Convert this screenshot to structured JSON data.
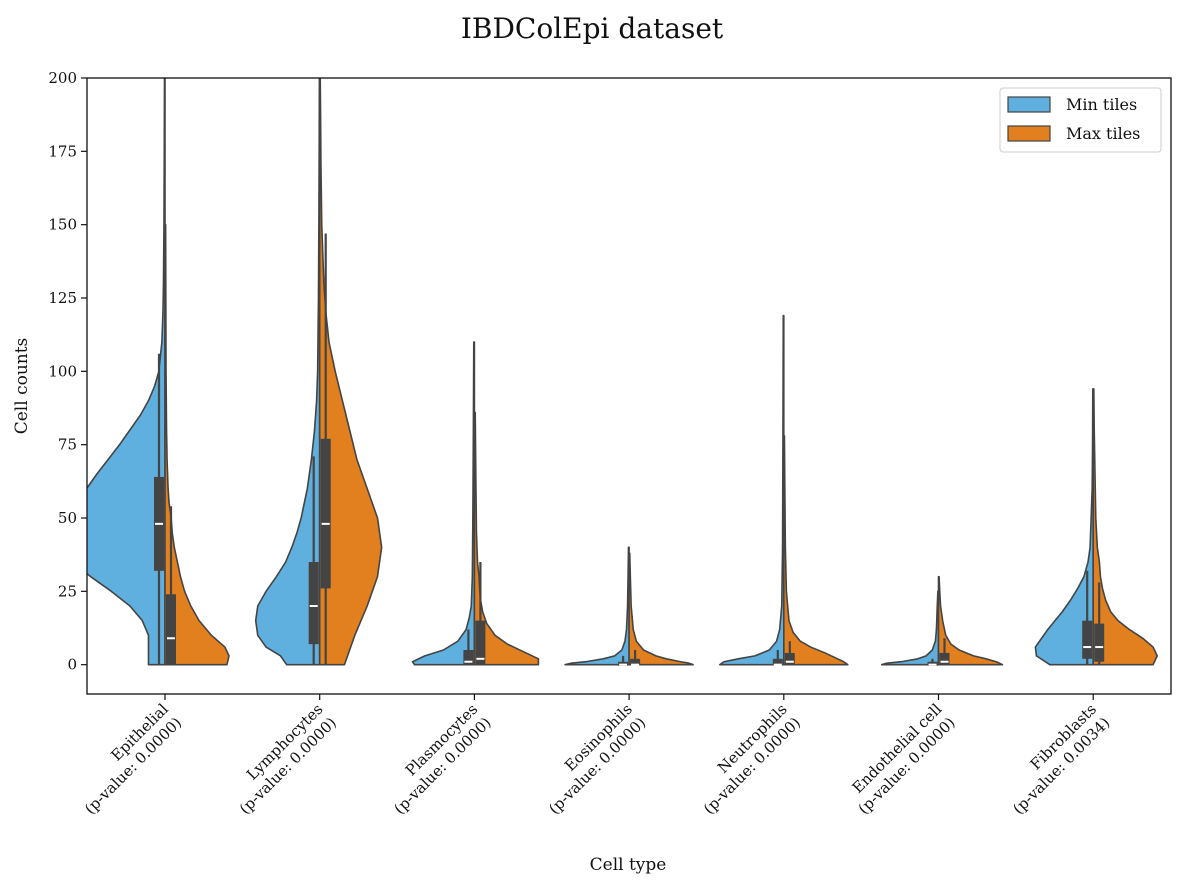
{
  "chart_data": {
    "type": "violin",
    "title": "IBDColEpi dataset",
    "xlabel": "Cell type",
    "ylabel": "Cell counts",
    "ylim": [
      -10,
      200
    ],
    "yticks": [
      0,
      25,
      50,
      75,
      100,
      125,
      150,
      175,
      200
    ],
    "legend": {
      "placement": "top-right"
    },
    "series": [
      {
        "name": "Min tiles",
        "color": "#5fafdf",
        "side": "left"
      },
      {
        "name": "Max tiles",
        "color": "#e2801f",
        "side": "right"
      }
    ],
    "categories": [
      {
        "name": "Epithelial",
        "pvalue": "(p-value: 0.0000)",
        "min": {
          "density": [
            [
              0,
              16
            ],
            [
              5,
              16
            ],
            [
              10,
              16
            ],
            [
              15,
              22
            ],
            [
              20,
              34
            ],
            [
              25,
              52
            ],
            [
              30,
              72
            ],
            [
              35,
              90
            ],
            [
              40,
              98
            ],
            [
              45,
              96
            ],
            [
              50,
              90
            ],
            [
              55,
              84
            ],
            [
              60,
              76
            ],
            [
              65,
              66
            ],
            [
              70,
              55
            ],
            [
              75,
              44
            ],
            [
              80,
              34
            ],
            [
              85,
              24
            ],
            [
              90,
              16
            ],
            [
              95,
              10
            ],
            [
              100,
              6
            ],
            [
              110,
              3
            ],
            [
              120,
              2
            ],
            [
              130,
              1.5
            ],
            [
              150,
              1
            ],
            [
              175,
              0.7
            ],
            [
              200,
              0.5
            ]
          ],
          "q1": 32,
          "median": 48,
          "q3": 64,
          "wlow": 0,
          "whigh": 106
        },
        "max": {
          "density": [
            [
              0,
              60
            ],
            [
              3,
              62
            ],
            [
              6,
              58
            ],
            [
              10,
              45
            ],
            [
              15,
              33
            ],
            [
              20,
              25
            ],
            [
              25,
              19
            ],
            [
              30,
              15
            ],
            [
              35,
              12
            ],
            [
              40,
              9
            ],
            [
              45,
              7
            ],
            [
              50,
              6
            ],
            [
              55,
              4
            ],
            [
              60,
              3
            ],
            [
              70,
              2
            ],
            [
              80,
              1.5
            ],
            [
              100,
              1
            ],
            [
              125,
              0.8
            ],
            [
              150,
              0.6
            ]
          ],
          "q1": 0,
          "median": 9,
          "q3": 24,
          "wlow": 0,
          "whigh": 54
        }
      },
      {
        "name": "Lymphocytes",
        "pvalue": "(p-value: 0.0000)",
        "min": {
          "density": [
            [
              0,
              32
            ],
            [
              3,
              38
            ],
            [
              6,
              52
            ],
            [
              10,
              60
            ],
            [
              15,
              62
            ],
            [
              20,
              60
            ],
            [
              25,
              52
            ],
            [
              30,
              42
            ],
            [
              35,
              33
            ],
            [
              40,
              27
            ],
            [
              45,
              22
            ],
            [
              50,
              18
            ],
            [
              55,
              15
            ],
            [
              60,
              12
            ],
            [
              70,
              8
            ],
            [
              80,
              5
            ],
            [
              90,
              3
            ],
            [
              100,
              2
            ],
            [
              125,
              1.2
            ],
            [
              150,
              0.8
            ],
            [
              175,
              0.5
            ],
            [
              200,
              0.3
            ]
          ],
          "q1": 7,
          "median": 20,
          "q3": 35,
          "wlow": 0,
          "whigh": 71
        },
        "max": {
          "density": [
            [
              0,
              24
            ],
            [
              10,
              34
            ],
            [
              20,
              46
            ],
            [
              30,
              56
            ],
            [
              40,
              60
            ],
            [
              50,
              56
            ],
            [
              60,
              46
            ],
            [
              70,
              36
            ],
            [
              80,
              29
            ],
            [
              90,
              22
            ],
            [
              100,
              15
            ],
            [
              110,
              9
            ],
            [
              120,
              6
            ],
            [
              130,
              4
            ],
            [
              140,
              3
            ],
            [
              150,
              2
            ],
            [
              170,
              1.2
            ],
            [
              190,
              0.8
            ],
            [
              200,
              0.5
            ]
          ],
          "q1": 26,
          "median": 48,
          "q3": 77,
          "wlow": 0,
          "whigh": 147
        }
      },
      {
        "name": "Plasmocytes",
        "pvalue": "(p-value: 0.0000)",
        "min": {
          "density": [
            [
              0,
              58
            ],
            [
              1,
              60
            ],
            [
              3,
              48
            ],
            [
              5,
              30
            ],
            [
              8,
              16
            ],
            [
              12,
              8
            ],
            [
              16,
              5
            ],
            [
              20,
              3
            ],
            [
              30,
              2
            ],
            [
              50,
              1.5
            ],
            [
              80,
              1
            ],
            [
              110,
              0.6
            ]
          ],
          "q1": 0,
          "median": 1,
          "q3": 5,
          "wlow": 0,
          "whigh": 12
        },
        "max": {
          "density": [
            [
              0,
              62
            ],
            [
              2,
              62
            ],
            [
              4,
              50
            ],
            [
              7,
              32
            ],
            [
              10,
              20
            ],
            [
              14,
              12
            ],
            [
              18,
              8
            ],
            [
              22,
              6
            ],
            [
              26,
              5
            ],
            [
              30,
              4.5
            ],
            [
              35,
              3
            ],
            [
              45,
              2
            ],
            [
              60,
              1.5
            ],
            [
              86,
              0.8
            ]
          ],
          "q1": 0,
          "median": 2,
          "q3": 15,
          "wlow": 0,
          "whigh": 35
        }
      },
      {
        "name": "Eosinophils",
        "pvalue": "(p-value: 0.0000)",
        "min": {
          "density": [
            [
              0,
              62
            ],
            [
              0.5,
              56
            ],
            [
              1,
              42
            ],
            [
              2,
              25
            ],
            [
              3,
              14
            ],
            [
              5,
              7
            ],
            [
              8,
              4
            ],
            [
              12,
              2.5
            ],
            [
              20,
              1.5
            ],
            [
              30,
              1
            ],
            [
              40,
              0.6
            ]
          ],
          "q1": 0,
          "median": 0,
          "q3": 1,
          "wlow": 0,
          "whigh": 3
        },
        "max": {
          "density": [
            [
              0,
              62
            ],
            [
              0.5,
              58
            ],
            [
              1,
              50
            ],
            [
              2,
              36
            ],
            [
              3,
              26
            ],
            [
              5,
              14
            ],
            [
              8,
              7
            ],
            [
              12,
              4
            ],
            [
              20,
              2
            ],
            [
              30,
              1.2
            ],
            [
              38,
              0.6
            ]
          ],
          "q1": 0,
          "median": 0,
          "q3": 2,
          "wlow": 0,
          "whigh": 5
        }
      },
      {
        "name": "Neutrophils",
        "pvalue": "(p-value: 0.0000)",
        "min": {
          "density": [
            [
              0,
              62
            ],
            [
              1,
              58
            ],
            [
              2,
              44
            ],
            [
              3,
              28
            ],
            [
              5,
              14
            ],
            [
              8,
              7
            ],
            [
              12,
              4
            ],
            [
              20,
              2
            ],
            [
              40,
              1.2
            ],
            [
              80,
              0.8
            ],
            [
              119,
              0.5
            ]
          ],
          "q1": 0,
          "median": 0,
          "q3": 2,
          "wlow": 0,
          "whigh": 5
        },
        "max": {
          "density": [
            [
              0,
              62
            ],
            [
              1,
              58
            ],
            [
              2,
              52
            ],
            [
              4,
              40
            ],
            [
              6,
              26
            ],
            [
              8,
              16
            ],
            [
              11,
              9
            ],
            [
              15,
              5
            ],
            [
              25,
              2.5
            ],
            [
              40,
              1.5
            ],
            [
              60,
              1
            ],
            [
              78,
              0.6
            ]
          ],
          "q1": 0,
          "median": 1,
          "q3": 4,
          "wlow": 0,
          "whigh": 8
        }
      },
      {
        "name": "Endothelial cell",
        "pvalue": "(p-value: 0.0000)",
        "min": {
          "density": [
            [
              0,
              55
            ],
            [
              0.5,
              50
            ],
            [
              1,
              36
            ],
            [
              2,
              20
            ],
            [
              3,
              12
            ],
            [
              5,
              6
            ],
            [
              8,
              3
            ],
            [
              12,
              2
            ],
            [
              20,
              1.2
            ],
            [
              25,
              0.6
            ]
          ],
          "q1": 0,
          "median": 0,
          "q3": 1,
          "wlow": 0,
          "whigh": 2
        },
        "max": {
          "density": [
            [
              0,
              62
            ],
            [
              1,
              56
            ],
            [
              2,
              46
            ],
            [
              3,
              34
            ],
            [
              5,
              20
            ],
            [
              7,
              12
            ],
            [
              10,
              7
            ],
            [
              15,
              4
            ],
            [
              20,
              2
            ],
            [
              25,
              1.2
            ],
            [
              30,
              0.6
            ]
          ],
          "q1": 0,
          "median": 1,
          "q3": 4,
          "wlow": 0,
          "whigh": 9
        }
      },
      {
        "name": "Fibroblasts",
        "pvalue": "(p-value: 0.0034)",
        "min": {
          "density": [
            [
              0,
              42
            ],
            [
              3,
              55
            ],
            [
              6,
              56
            ],
            [
              9,
              50
            ],
            [
              12,
              44
            ],
            [
              15,
              37
            ],
            [
              18,
              30
            ],
            [
              22,
              22
            ],
            [
              26,
              15
            ],
            [
              30,
              9
            ],
            [
              35,
              5
            ],
            [
              40,
              3
            ],
            [
              50,
              2
            ],
            [
              60,
              1
            ],
            [
              75,
              0.6
            ],
            [
              94,
              0.4
            ]
          ],
          "q1": 2,
          "median": 6,
          "q3": 15,
          "wlow": 0,
          "whigh": 32
        },
        "max": {
          "density": [
            [
              0,
              58
            ],
            [
              3,
              62
            ],
            [
              6,
              58
            ],
            [
              9,
              48
            ],
            [
              12,
              35
            ],
            [
              15,
              24
            ],
            [
              18,
              17
            ],
            [
              22,
              12
            ],
            [
              26,
              9
            ],
            [
              30,
              7
            ],
            [
              35,
              6
            ],
            [
              40,
              4
            ],
            [
              50,
              2.5
            ],
            [
              60,
              2
            ],
            [
              80,
              1
            ],
            [
              94,
              0.6
            ]
          ],
          "q1": 1,
          "median": 6,
          "q3": 14,
          "wlow": 0,
          "whigh": 28
        }
      }
    ]
  }
}
